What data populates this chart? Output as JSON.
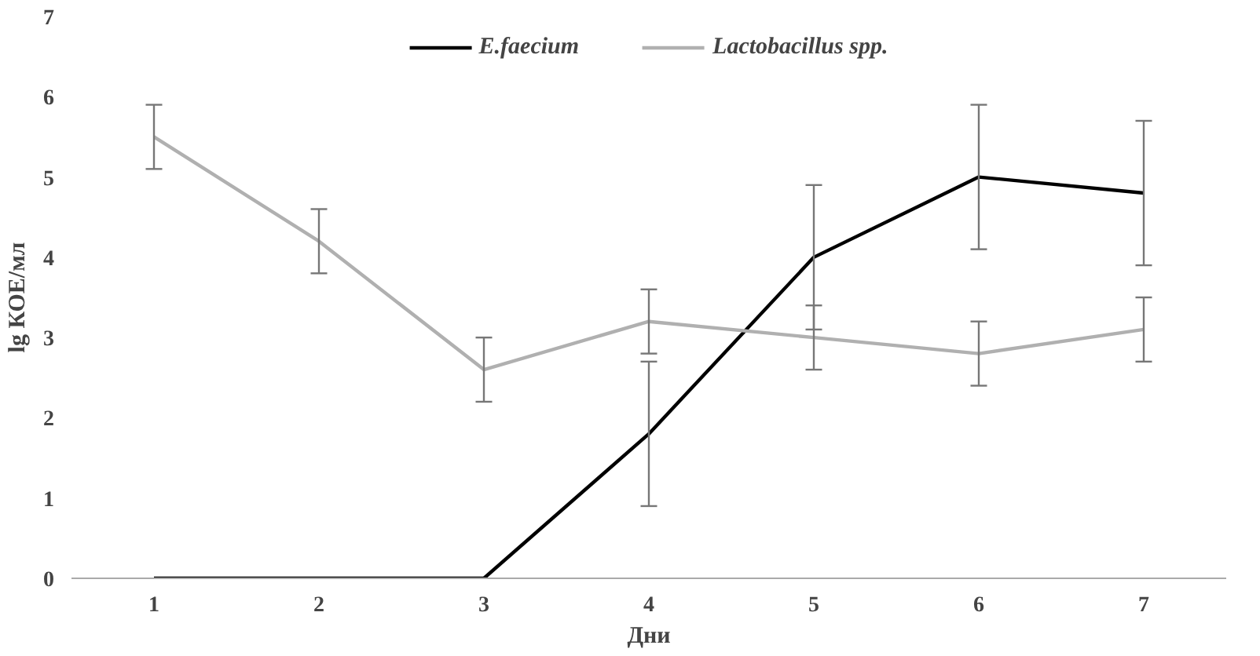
{
  "chart_data": {
    "type": "line",
    "xlabel": "Дни",
    "ylabel": "lg КОЕ/мл",
    "categories": [
      "1",
      "2",
      "3",
      "4",
      "5",
      "6",
      "7"
    ],
    "ylim": [
      0,
      7
    ],
    "yticks": [
      0,
      1,
      2,
      3,
      4,
      5,
      6,
      7
    ],
    "grid": false,
    "legend": "top",
    "marker": "none",
    "line_style": "solid",
    "series": [
      {
        "name": "E.faecium",
        "color": "#000000",
        "values": [
          0,
          0,
          0,
          1.8,
          4.0,
          5.0,
          4.8
        ],
        "errors": [
          null,
          null,
          null,
          0.9,
          0.9,
          0.9,
          0.9
        ]
      },
      {
        "name": "Lactobacillus spp.",
        "color": "#b0b0b0",
        "values": [
          5.5,
          4.2,
          2.6,
          3.2,
          3.0,
          2.8,
          3.1
        ],
        "errors": [
          0.4,
          0.4,
          0.4,
          0.4,
          0.4,
          0.4,
          0.4
        ]
      }
    ]
  }
}
